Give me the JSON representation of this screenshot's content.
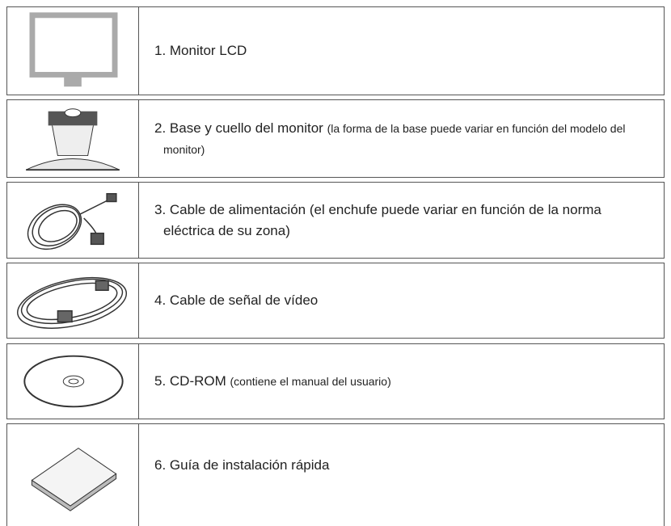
{
  "items": [
    {
      "label": "1. Monitor LCD"
    },
    {
      "label": "2. Base y cuello del monitor",
      "note": "(la forma de la base  puede variar en función del modelo del monitor)"
    },
    {
      "label": "3. Cable de alimentación (el enchufe puede variar en función de la norma eléctrica de su zona)"
    },
    {
      "label": "4. Cable de señal de vídeo"
    },
    {
      "label": "5. CD-ROM",
      "note": "(contiene el manual del usuario)"
    },
    {
      "label": "6. Guía de instalación rápida"
    }
  ]
}
